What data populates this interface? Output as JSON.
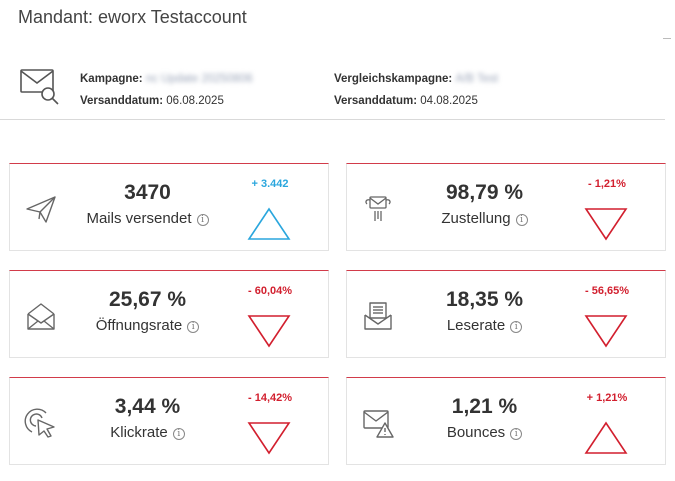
{
  "mandant": "Mandant: eworx Testaccount",
  "campaign": {
    "kampagne_label": "Kampagne:",
    "kampagne_value": "nc Update 20250806",
    "versanddatum_label": "Versanddatum:",
    "versanddatum_value": "06.08.2025",
    "vergleich_label": "Vergleichskampagne:",
    "vergleich_value": "A/B Test",
    "vergleich_datum_label": "Versanddatum:",
    "vergleich_datum_value": "04.08.2025"
  },
  "cards": [
    {
      "value": "3470",
      "label": "Mails versendet",
      "delta": "+ 3.442",
      "direction": "up",
      "color": "#2aa6dd",
      "icon": "paper-plane-icon"
    },
    {
      "value": "98,79 %",
      "label": "Zustellung",
      "delta": "- 1,21%",
      "direction": "down",
      "color": "#d21f2e",
      "icon": "mail-delivery-icon"
    },
    {
      "value": "25,67 %",
      "label": "Öffnungsrate",
      "delta": "- 60,04%",
      "direction": "down",
      "color": "#d21f2e",
      "icon": "open-envelope-icon"
    },
    {
      "value": "18,35 %",
      "label": "Leserate",
      "delta": "- 56,65%",
      "direction": "down",
      "color": "#d21f2e",
      "icon": "letter-read-icon"
    },
    {
      "value": "3,44 %",
      "label": "Klickrate",
      "delta": "- 14,42%",
      "direction": "down",
      "color": "#d21f2e",
      "icon": "click-cursor-icon"
    },
    {
      "value": "1,21 %",
      "label": "Bounces",
      "delta": "+ 1,21%",
      "direction": "up",
      "color": "#d21f2e",
      "icon": "mail-warning-icon"
    }
  ],
  "info_glyph": "i"
}
